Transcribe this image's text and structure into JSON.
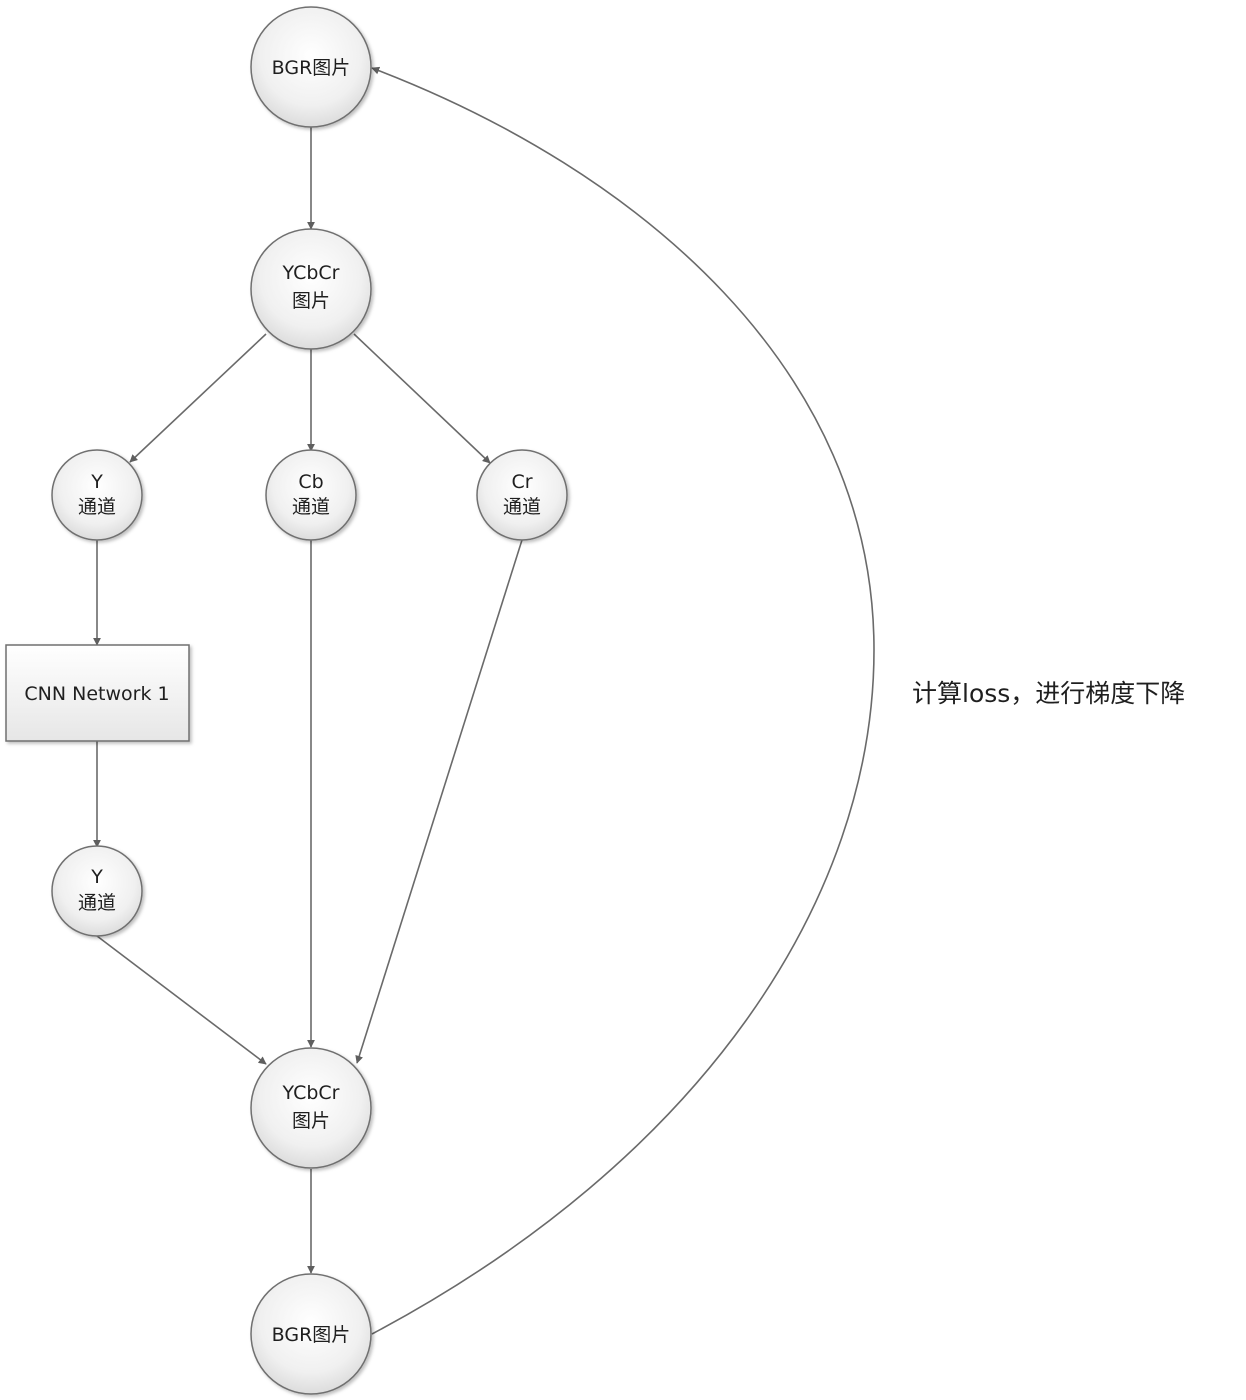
{
  "nodes": {
    "bgr_top": {
      "line1": "BGR图片"
    },
    "ycbcr_top": {
      "line1": "YCbCr",
      "line2": "图片"
    },
    "y_channel": {
      "line1": "Y",
      "line2": "通道"
    },
    "cb_channel": {
      "line1": "Cb",
      "line2": "通道"
    },
    "cr_channel": {
      "line1": "Cr",
      "line2": "通道"
    },
    "cnn": {
      "label": "CNN Network 1"
    },
    "y_channel_out": {
      "line1": "Y",
      "line2": "通道"
    },
    "ycbcr_bottom": {
      "line1": "YCbCr",
      "line2": "图片"
    },
    "bgr_bottom": {
      "line1": "BGR图片"
    }
  },
  "annotation": {
    "text": "计算loss，进行梯度下降"
  }
}
